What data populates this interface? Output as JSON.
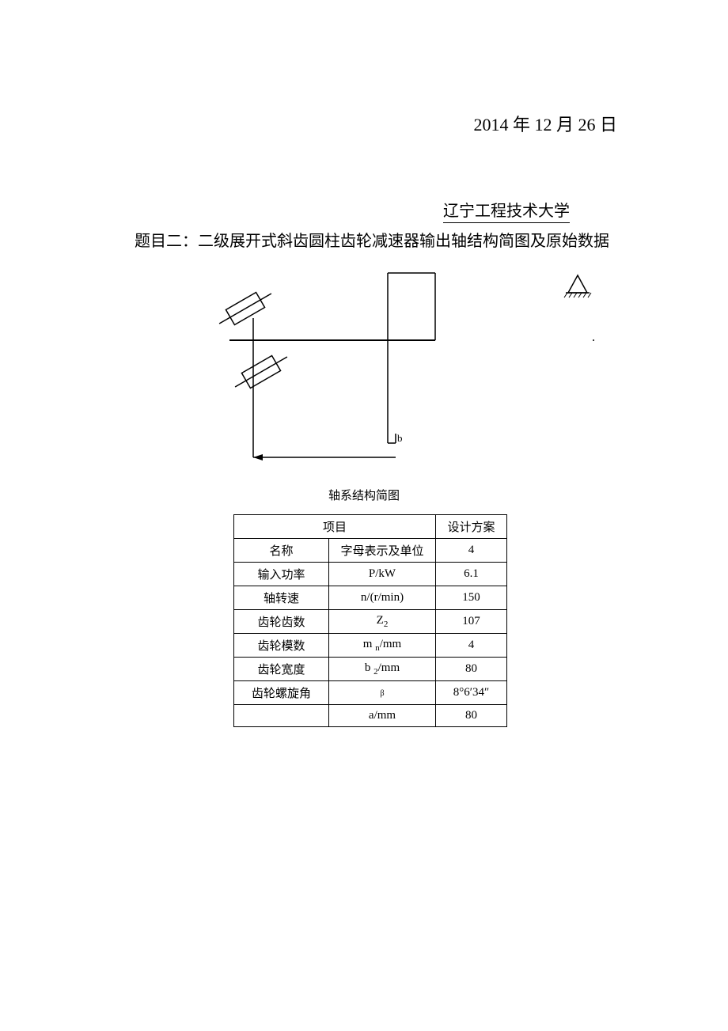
{
  "date": "2014 年 12 月 26 日",
  "university": "辽宁工程技术大学",
  "title": "题目二：二级展开式斜齿圆柱齿轮减速器输出轴结构简图及原始数据",
  "diagram_caption": "轴系结构简图",
  "diagram": {
    "label_b": "b",
    "stroke_color": "#000000",
    "stroke_width": 1.5
  },
  "table": {
    "header": {
      "project": "项目",
      "design": "设计方案"
    },
    "rows": [
      {
        "name": "名称",
        "symbol": "字母表示及单位",
        "value": "4"
      },
      {
        "name": "输入功率",
        "symbol": "P/kW",
        "value": "6.1"
      },
      {
        "name": "轴转速",
        "symbol": "n/(r/min)",
        "value": "150"
      },
      {
        "name": "齿轮齿数",
        "symbol_html": "Z<span class=\"sub\">2</span>",
        "value": "107"
      },
      {
        "name": "齿轮模数",
        "symbol_html": "m <span class=\"sub\">n</span>/mm",
        "value": "4"
      },
      {
        "name": "齿轮宽度",
        "symbol_html": "b <span class=\"sub\">2</span>/mm",
        "value": "80"
      },
      {
        "name": "齿轮螺旋角",
        "symbol_html": "<span class=\"small\">β</span>",
        "value": "8°6′34″"
      },
      {
        "name": "",
        "symbol": "a/mm",
        "value": "80"
      }
    ]
  },
  "colors": {
    "background": "#ffffff",
    "text": "#000000",
    "border": "#000000"
  }
}
